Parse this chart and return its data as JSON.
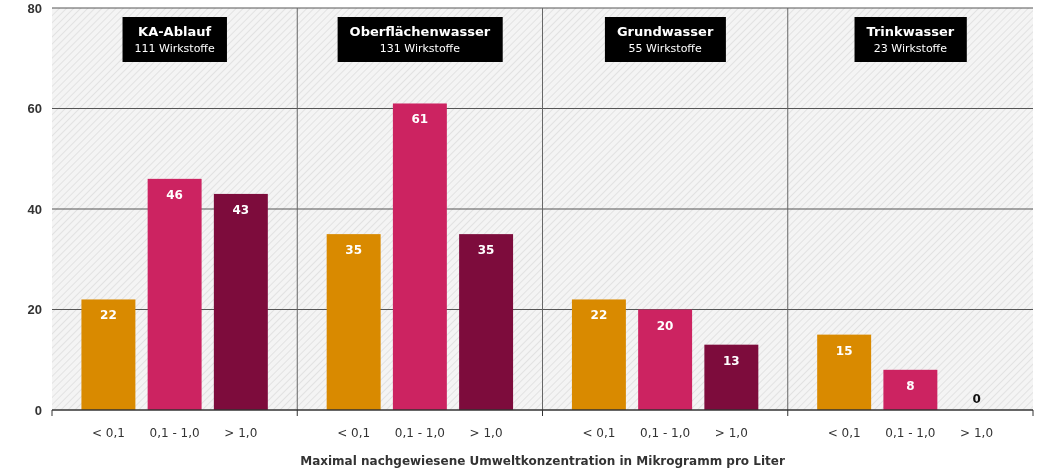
{
  "chart_data": {
    "type": "bar",
    "xlabel": "Maximal nachgewiesene Umweltkonzentration in Mikrogramm pro Liter",
    "categories": [
      "< 0,1",
      "0,1 - 1,0",
      "> 1,0",
      "< 0,1",
      "0,1 - 1,0",
      "> 1,0",
      "< 0,1",
      "0,1 - 1,0",
      "> 1,0",
      "< 0,1",
      "0,1 - 1,0",
      "> 1,0"
    ],
    "values": [
      22,
      46,
      43,
      35,
      61,
      35,
      22,
      20,
      13,
      15,
      8,
      0
    ],
    "colors": [
      "#d98a00",
      "#cc2361",
      "#7d0c3c",
      "#d98a00",
      "#cc2361",
      "#7d0c3c",
      "#d98a00",
      "#cc2361",
      "#7d0c3c",
      "#d98a00",
      "#cc2361",
      "#7d0c3c"
    ],
    "annotations": [
      "KA-Ablauf\n111 Wirkstoffe",
      "Oberflächenwasser\n131 Wirkstoffe",
      "Grundwasser\n55 Wirkstoffe",
      "Trinkwasser\n23 Wirkstoffe"
    ],
    "ylim": [
      0,
      80
    ],
    "yticks": [
      0,
      20,
      40,
      60,
      80
    ],
    "grid": "y",
    "data_labels": true
  }
}
